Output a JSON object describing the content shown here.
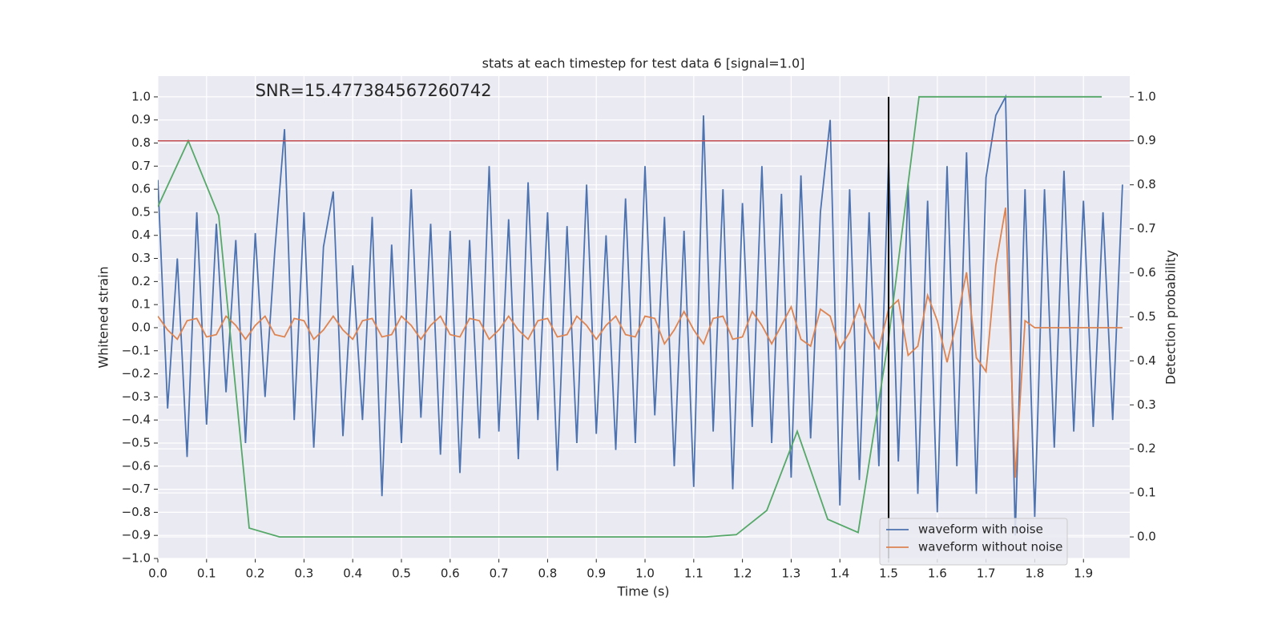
{
  "chart_data": {
    "type": "line",
    "title": "stats at each timestep for test data 6 [signal=1.0]",
    "xlabel": "Time (s)",
    "ylabel": "Whitened strain",
    "y2label": "Detection probability",
    "annotation": {
      "text": "SNR=15.477384567260742",
      "x": 0.2,
      "y": 1.0
    },
    "xlim": [
      0,
      1.995
    ],
    "ylim": [
      -1.0,
      1.09
    ],
    "y2lim": [
      -0.049,
      1.047
    ],
    "xticks": [
      {
        "value": 0,
        "label": "0.0"
      },
      {
        "value": 0.1,
        "label": "0.1"
      },
      {
        "value": 0.2,
        "label": "0.2"
      },
      {
        "value": 0.3,
        "label": "0.3"
      },
      {
        "value": 0.4,
        "label": "0.4"
      },
      {
        "value": 0.5,
        "label": "0.5"
      },
      {
        "value": 0.6,
        "label": "0.6"
      },
      {
        "value": 0.7,
        "label": "0.7"
      },
      {
        "value": 0.8,
        "label": "0.8"
      },
      {
        "value": 0.9,
        "label": "0.9"
      },
      {
        "value": 1,
        "label": "1.0"
      },
      {
        "value": 1.1,
        "label": "1.1"
      },
      {
        "value": 1.2,
        "label": "1.2"
      },
      {
        "value": 1.3,
        "label": "1.3"
      },
      {
        "value": 1.4,
        "label": "1.4"
      },
      {
        "value": 1.5,
        "label": "1.5"
      },
      {
        "value": 1.6,
        "label": "1.6"
      },
      {
        "value": 1.7,
        "label": "1.7"
      },
      {
        "value": 1.8,
        "label": "1.8"
      },
      {
        "value": 1.9,
        "label": "1.9"
      }
    ],
    "yticks": [
      {
        "value": -1,
        "label": "−1.0"
      },
      {
        "value": -0.9,
        "label": "−0.9"
      },
      {
        "value": -0.8,
        "label": "−0.8"
      },
      {
        "value": -0.7,
        "label": "−0.7"
      },
      {
        "value": -0.6,
        "label": "−0.6"
      },
      {
        "value": -0.5,
        "label": "−0.5"
      },
      {
        "value": -0.4,
        "label": "−0.4"
      },
      {
        "value": -0.3,
        "label": "−0.3"
      },
      {
        "value": -0.2,
        "label": "−0.2"
      },
      {
        "value": -0.1,
        "label": "−0.1"
      },
      {
        "value": 0,
        "label": "0.0"
      },
      {
        "value": 0.1,
        "label": "0.1"
      },
      {
        "value": 0.2,
        "label": "0.2"
      },
      {
        "value": 0.3,
        "label": "0.3"
      },
      {
        "value": 0.4,
        "label": "0.4"
      },
      {
        "value": 0.5,
        "label": "0.5"
      },
      {
        "value": 0.6,
        "label": "0.6"
      },
      {
        "value": 0.7,
        "label": "0.7"
      },
      {
        "value": 0.8,
        "label": "0.8"
      },
      {
        "value": 0.9,
        "label": "0.9"
      },
      {
        "value": 1,
        "label": "1.0"
      }
    ],
    "y2ticks": [
      {
        "value": 0,
        "label": "0.0"
      },
      {
        "value": 0.1,
        "label": "0.1"
      },
      {
        "value": 0.2,
        "label": "0.2"
      },
      {
        "value": 0.3,
        "label": "0.3"
      },
      {
        "value": 0.4,
        "label": "0.4"
      },
      {
        "value": 0.5,
        "label": "0.5"
      },
      {
        "value": 0.6,
        "label": "0.6"
      },
      {
        "value": 0.7,
        "label": "0.7"
      },
      {
        "value": 0.8,
        "label": "0.8"
      },
      {
        "value": 0.9,
        "label": "0.9"
      },
      {
        "value": 1,
        "label": "1.0"
      }
    ],
    "grid": true,
    "legend": "lower right",
    "x": [
      0,
      0.02,
      0.04,
      0.06,
      0.08,
      0.1,
      0.12,
      0.14,
      0.16,
      0.18,
      0.2,
      0.22,
      0.24,
      0.26,
      0.28,
      0.3,
      0.32,
      0.34,
      0.36,
      0.38,
      0.4,
      0.42,
      0.44,
      0.46,
      0.48,
      0.5,
      0.52,
      0.54,
      0.56,
      0.58,
      0.6,
      0.62,
      0.64,
      0.66,
      0.68,
      0.7,
      0.72,
      0.74,
      0.76,
      0.78,
      0.8,
      0.82,
      0.84,
      0.86,
      0.88,
      0.9,
      0.92,
      0.94,
      0.96,
      0.98,
      1.0,
      1.02,
      1.04,
      1.06,
      1.08,
      1.1,
      1.12,
      1.14,
      1.16,
      1.18,
      1.2,
      1.22,
      1.24,
      1.26,
      1.28,
      1.3,
      1.32,
      1.34,
      1.36,
      1.38,
      1.4,
      1.42,
      1.44,
      1.46,
      1.48,
      1.5,
      1.52,
      1.54,
      1.56,
      1.58,
      1.6,
      1.62,
      1.64,
      1.66,
      1.68,
      1.7,
      1.72,
      1.74,
      1.76,
      1.78,
      1.8,
      1.82,
      1.84,
      1.86,
      1.88,
      1.9,
      1.92,
      1.94,
      1.96,
      1.98
    ],
    "series": [
      {
        "name": "waveform with noise",
        "color": "#4c72b0",
        "values": [
          0.64,
          -0.35,
          0.3,
          -0.56,
          0.5,
          -0.42,
          0.45,
          -0.28,
          0.38,
          -0.5,
          0.41,
          -0.3,
          0.33,
          0.86,
          -0.4,
          0.5,
          -0.52,
          0.35,
          0.59,
          -0.47,
          0.27,
          -0.4,
          0.48,
          -0.73,
          0.36,
          -0.5,
          0.6,
          -0.39,
          0.45,
          -0.55,
          0.42,
          -0.63,
          0.38,
          -0.48,
          0.7,
          -0.45,
          0.47,
          -0.57,
          0.63,
          -0.4,
          0.5,
          -0.62,
          0.44,
          -0.5,
          0.62,
          -0.46,
          0.4,
          -0.53,
          0.56,
          -0.5,
          0.7,
          -0.38,
          0.48,
          -0.6,
          0.42,
          -0.69,
          0.92,
          -0.45,
          0.6,
          -0.7,
          0.54,
          -0.43,
          0.7,
          -0.5,
          0.58,
          -0.65,
          0.66,
          -0.48,
          0.5,
          0.9,
          -0.77,
          0.6,
          -0.66,
          0.5,
          -0.6,
          0.73,
          -0.58,
          0.62,
          -0.72,
          0.55,
          -0.8,
          0.7,
          -0.6,
          0.76,
          -0.72,
          0.65,
          0.92,
          1.0,
          -0.9,
          0.6,
          -0.82,
          0.6,
          -0.52,
          0.68,
          -0.45,
          0.55,
          -0.43,
          0.5,
          -0.4,
          0.62
        ]
      },
      {
        "name": "waveform without noise",
        "color": "#dd8452",
        "values": [
          0.05,
          -0.01,
          -0.05,
          0.03,
          0.04,
          -0.04,
          -0.03,
          0.05,
          0.01,
          -0.05,
          0.01,
          0.05,
          -0.03,
          -0.04,
          0.04,
          0.03,
          -0.05,
          -0.01,
          0.05,
          -0.01,
          -0.05,
          0.03,
          0.04,
          -0.04,
          -0.03,
          0.05,
          0.01,
          -0.05,
          0.01,
          0.05,
          -0.03,
          -0.04,
          0.04,
          0.03,
          -0.05,
          -0.01,
          0.05,
          -0.01,
          -0.05,
          0.03,
          0.04,
          -0.04,
          -0.03,
          0.05,
          0.01,
          -0.05,
          0.01,
          0.05,
          -0.03,
          -0.04,
          0.05,
          0.04,
          -0.07,
          -0.01,
          0.07,
          -0.01,
          -0.07,
          0.04,
          0.05,
          -0.05,
          -0.04,
          0.07,
          0.01,
          -0.07,
          0.01,
          0.09,
          -0.05,
          -0.08,
          0.08,
          0.05,
          -0.09,
          -0.02,
          0.1,
          -0.02,
          -0.09,
          0.08,
          0.12,
          -0.12,
          -0.08,
          0.14,
          0.03,
          -0.15,
          0.03,
          0.24,
          -0.13,
          -0.19,
          0.27,
          0.52,
          -0.65,
          0.03,
          0,
          0,
          0,
          0,
          0,
          0,
          0,
          0,
          0,
          0
        ]
      },
      {
        "color": "#55a868",
        "axis": "y2",
        "x": [
          0,
          0.0625,
          0.125,
          0.1875,
          0.25,
          0.3125,
          0.375,
          0.4375,
          0.5,
          0.5625,
          0.625,
          0.6875,
          0.75,
          0.8125,
          0.875,
          0.9375,
          1.0,
          1.0625,
          1.125,
          1.1875,
          1.25,
          1.3125,
          1.375,
          1.4375,
          1.5,
          1.5625,
          1.625,
          1.6875,
          1.75,
          1.8125,
          1.875,
          1.9375
        ],
        "values": [
          0.75,
          0.9,
          0.73,
          0.02,
          0,
          0,
          0,
          0,
          0,
          0,
          0,
          0,
          0,
          0,
          0,
          0,
          0,
          0,
          0,
          0.005,
          0.06,
          0.24,
          0.04,
          0.01,
          0.45,
          1,
          1,
          1,
          1,
          1,
          1,
          1
        ]
      }
    ],
    "hline": {
      "value": 0.9,
      "axis": "y2",
      "color": "#c44e52"
    },
    "vline": {
      "x": 1.5,
      "y": [
        -1.0,
        1.0
      ],
      "color": "#000000"
    }
  }
}
